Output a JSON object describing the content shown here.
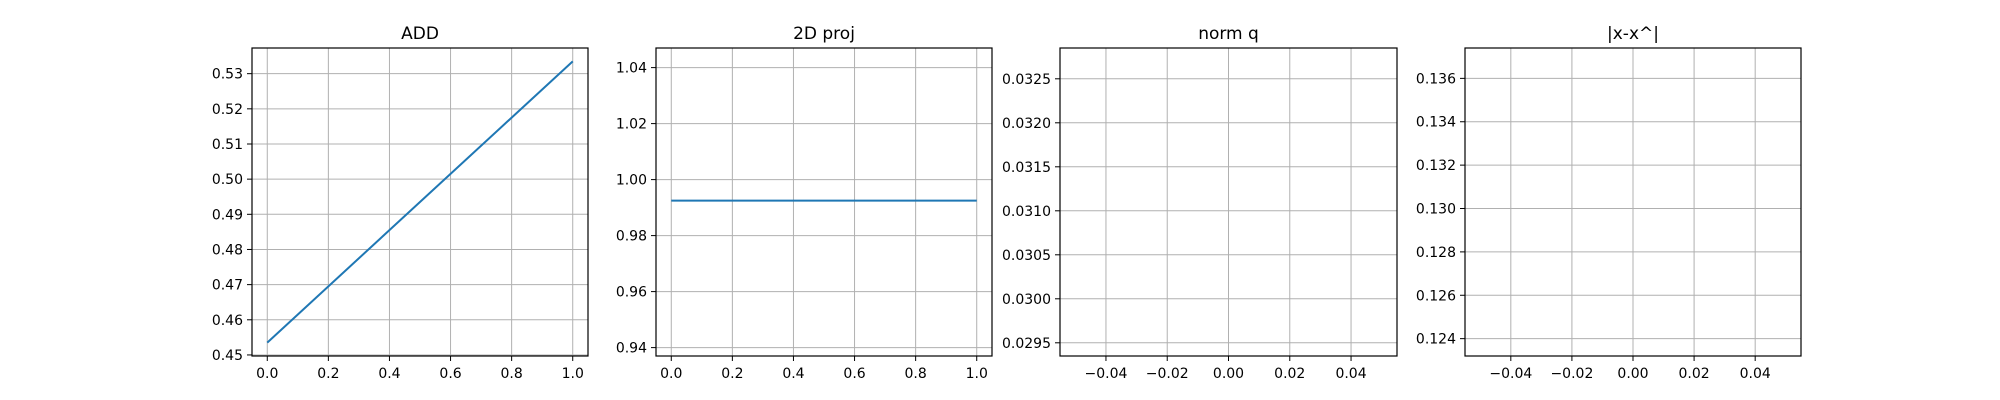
{
  "chart_data": [
    {
      "type": "line",
      "title": "ADD",
      "xlabel": "",
      "ylabel": "",
      "grid": true,
      "xlim": [
        -0.05,
        1.05
      ],
      "ylim": [
        0.4497,
        0.5373
      ],
      "xticks": [
        "0.0",
        "0.2",
        "0.4",
        "0.6",
        "0.8",
        "1.0"
      ],
      "yticks": [
        "0.45",
        "0.46",
        "0.47",
        "0.48",
        "0.49",
        "0.50",
        "0.51",
        "0.52",
        "0.53"
      ],
      "series": [
        {
          "x": [
            0.0,
            1.0
          ],
          "y": [
            0.4535,
            0.5335
          ],
          "color": "#1f77b4"
        }
      ]
    },
    {
      "type": "line",
      "title": "2D proj",
      "xlabel": "",
      "ylabel": "",
      "grid": true,
      "xlim": [
        -0.05,
        1.05
      ],
      "ylim": [
        0.937,
        1.047
      ],
      "xticks": [
        "0.0",
        "0.2",
        "0.4",
        "0.6",
        "0.8",
        "1.0"
      ],
      "yticks": [
        "0.94",
        "0.96",
        "0.98",
        "1.00",
        "1.02",
        "1.04"
      ],
      "series": [
        {
          "x": [
            0.0,
            1.0
          ],
          "y": [
            0.9925,
            0.9925
          ],
          "color": "#1f77b4"
        }
      ]
    },
    {
      "type": "line",
      "title": "norm q",
      "xlabel": "",
      "ylabel": "",
      "grid": true,
      "xlim": [
        -0.055,
        0.055
      ],
      "ylim": [
        0.02935,
        0.03285
      ],
      "xticks": [
        "−0.04",
        "−0.02",
        "0.00",
        "0.02",
        "0.04"
      ],
      "yticks": [
        "0.0295",
        "0.0300",
        "0.0305",
        "0.0310",
        "0.0315",
        "0.0320",
        "0.0325"
      ],
      "series": []
    },
    {
      "type": "line",
      "title": "|x-x^|",
      "xlabel": "",
      "ylabel": "",
      "grid": true,
      "xlim": [
        -0.055,
        0.055
      ],
      "ylim": [
        0.1232,
        0.1374
      ],
      "xticks": [
        "−0.04",
        "−0.02",
        "0.00",
        "0.02",
        "0.04"
      ],
      "yticks": [
        "0.124",
        "0.126",
        "0.128",
        "0.130",
        "0.132",
        "0.134",
        "0.136"
      ],
      "series": []
    }
  ]
}
